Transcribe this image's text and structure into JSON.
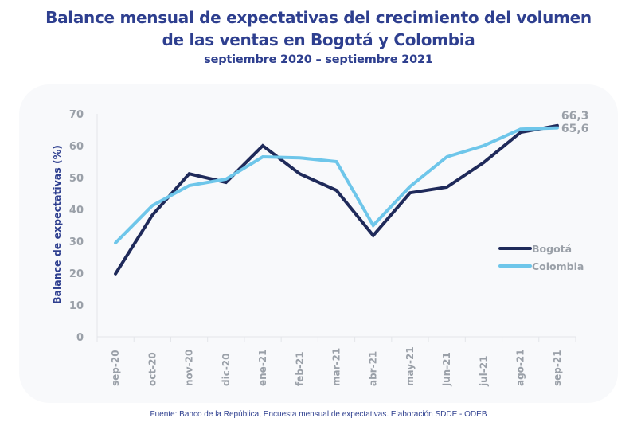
{
  "header": {
    "title_line1": "Balance mensual de expectativas del crecimiento del volumen",
    "title_line2": "de las ventas en Bogotá y Colombia",
    "subtitle": "septiembre 2020 – septiembre 2021"
  },
  "footer": {
    "source": "Fuente: Banco de la República, Encuesta mensual de expectativas. Elaboración SDDE - ODEB"
  },
  "chart_data": {
    "type": "line",
    "title": "Balance mensual de expectativas del crecimiento del volumen de las ventas en Bogotá y Colombia",
    "subtitle": "septiembre 2020 – septiembre 2021",
    "xlabel": "",
    "ylabel": "Balance de expectativas (%)",
    "ylim": [
      0,
      70
    ],
    "yticks": [
      0,
      10,
      20,
      30,
      40,
      50,
      60,
      70
    ],
    "grid": false,
    "legend": "right-middle",
    "categories": [
      "sep-20",
      "oct-20",
      "nov-20",
      "dic-20",
      "ene-21",
      "feb-21",
      "mar-21",
      "abr-21",
      "may-21",
      "jun-21",
      "jul-21",
      "ago-21",
      "sep-21"
    ],
    "series": [
      {
        "name": "Bogotá",
        "color": "#1f2a5a",
        "values": [
          19.8,
          38.2,
          51.2,
          48.5,
          60.0,
          51.2,
          46.0,
          31.8,
          45.2,
          47.0,
          54.7,
          64.2,
          66.3
        ],
        "end_label": "66,3"
      },
      {
        "name": "Colombia",
        "color": "#6ec6ea",
        "values": [
          29.5,
          41.2,
          47.5,
          49.5,
          56.5,
          56.2,
          55.0,
          35.0,
          47.2,
          56.5,
          60.0,
          65.2,
          65.6
        ],
        "end_label": "65,6"
      }
    ],
    "axis_text_color": "#9aa0a8",
    "ylabel_color": "#2e3f8f"
  }
}
